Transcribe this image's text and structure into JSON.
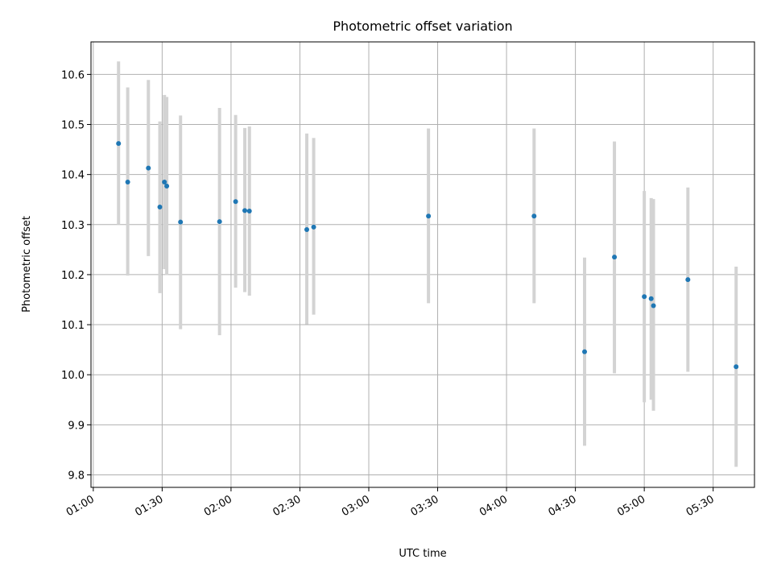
{
  "chart_data": {
    "type": "scatter",
    "title": "Photometric offset variation",
    "xlabel": "UTC time",
    "ylabel": "Photometric offset",
    "x_ticks": [
      "01:00",
      "01:30",
      "02:00",
      "02:30",
      "03:00",
      "03:30",
      "04:00",
      "04:30",
      "05:00",
      "05:30"
    ],
    "x_range": [
      "00:59",
      "05:48"
    ],
    "y_ticks": [
      "9.8",
      "9.9",
      "10.0",
      "10.1",
      "10.2",
      "10.3",
      "10.4",
      "10.5",
      "10.6"
    ],
    "ylim": [
      9.775,
      10.665
    ],
    "grid": true,
    "colors": {
      "points": "#1f77b4",
      "errorbars": "#d3d3d3",
      "grid": "#b0b0b0"
    },
    "points": [
      {
        "x": "01:11",
        "y": 10.462,
        "lo": 10.3,
        "hi": 10.626
      },
      {
        "x": "01:15",
        "y": 10.385,
        "lo": 10.198,
        "hi": 10.574
      },
      {
        "x": "01:24",
        "y": 10.413,
        "lo": 10.237,
        "hi": 10.589
      },
      {
        "x": "01:29",
        "y": 10.335,
        "lo": 10.163,
        "hi": 10.506
      },
      {
        "x": "01:31",
        "y": 10.385,
        "lo": 10.211,
        "hi": 10.559
      },
      {
        "x": "01:32",
        "y": 10.377,
        "lo": 10.199,
        "hi": 10.555
      },
      {
        "x": "01:38",
        "y": 10.305,
        "lo": 10.091,
        "hi": 10.518
      },
      {
        "x": "01:55",
        "y": 10.306,
        "lo": 10.079,
        "hi": 10.533
      },
      {
        "x": "02:02",
        "y": 10.346,
        "lo": 10.174,
        "hi": 10.519
      },
      {
        "x": "02:06",
        "y": 10.328,
        "lo": 10.165,
        "hi": 10.493
      },
      {
        "x": "02:08",
        "y": 10.327,
        "lo": 10.158,
        "hi": 10.496
      },
      {
        "x": "02:33",
        "y": 10.29,
        "lo": 10.101,
        "hi": 10.482
      },
      {
        "x": "02:36",
        "y": 10.295,
        "lo": 10.12,
        "hi": 10.473
      },
      {
        "x": "03:26",
        "y": 10.317,
        "lo": 10.143,
        "hi": 10.492
      },
      {
        "x": "04:12",
        "y": 10.317,
        "lo": 10.143,
        "hi": 10.492
      },
      {
        "x": "04:34",
        "y": 10.046,
        "lo": 9.858,
        "hi": 10.234
      },
      {
        "x": "04:47",
        "y": 10.235,
        "lo": 10.003,
        "hi": 10.466
      },
      {
        "x": "05:00",
        "y": 10.156,
        "lo": 9.945,
        "hi": 10.367
      },
      {
        "x": "05:03",
        "y": 10.152,
        "lo": 9.95,
        "hi": 10.353
      },
      {
        "x": "05:04",
        "y": 10.138,
        "lo": 9.928,
        "hi": 10.351
      },
      {
        "x": "05:19",
        "y": 10.19,
        "lo": 10.006,
        "hi": 10.374
      },
      {
        "x": "05:40",
        "y": 10.016,
        "lo": 9.816,
        "hi": 10.216
      }
    ]
  }
}
